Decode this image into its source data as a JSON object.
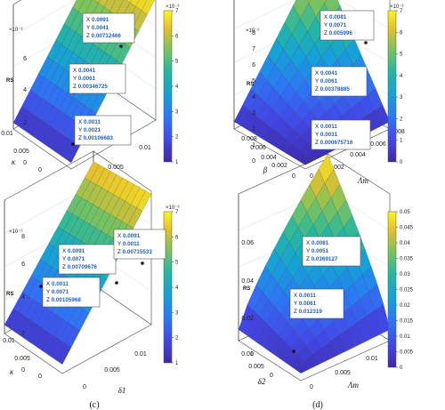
{
  "colors": {
    "low": "#3b1e8c",
    "mid": "#1fa187",
    "high": "#f5e61d"
  },
  "chart_data": [
    {
      "type": "surface",
      "caption": "(a)",
      "zlabel": "RS",
      "zexp": "×10⁻³",
      "xlabel": "β",
      "ylabel": "κ",
      "x_ticks": [
        "0",
        "0.005",
        "0.01"
      ],
      "y_ticks": [
        "0.01",
        "0.005",
        "0"
      ],
      "z_ticks": [
        "0",
        "2",
        "4",
        "6"
      ],
      "colorbar_ticks": [
        "1",
        "2",
        "3",
        "4",
        "5",
        "6",
        "7"
      ],
      "colorbar_exp": "×10⁻³",
      "datatips": [
        {
          "x": "0.0091",
          "y": "0.0041",
          "z": "0.00712466"
        },
        {
          "x": "0.0041",
          "y": "0.0061",
          "z": "0.00346725"
        },
        {
          "x": "0.0011",
          "y": "0.0021",
          "z": "0.00106683"
        }
      ]
    },
    {
      "type": "surface",
      "caption": "(b)",
      "zlabel": "RS",
      "zexp": "×10⁻³",
      "xlabel": "Λm",
      "ylabel": "β",
      "x_ticks": [
        "0",
        "0.002",
        "0.004",
        "0.006",
        "0.008"
      ],
      "y_ticks": [
        "0.008",
        "0.006",
        "0.004",
        "0.002",
        "0"
      ],
      "z_ticks": [
        "0",
        "1",
        "2",
        "3",
        "4",
        "5",
        "6",
        "7",
        "8"
      ],
      "colorbar_ticks": [
        "0",
        "1",
        "2",
        "3",
        "4",
        "5",
        "6",
        "7"
      ],
      "colorbar_exp": "×10⁻³",
      "datatips": [
        {
          "x": "0.0081",
          "y": "0.0071",
          "z": "0.005996"
        },
        {
          "x": "0.0041",
          "y": "0.0061",
          "z": "0.00378885"
        },
        {
          "x": "0.0011",
          "y": "0.0031",
          "z": "0.000675716"
        }
      ]
    },
    {
      "type": "surface",
      "caption": "(c)",
      "zlabel": "RS",
      "zexp": "×10⁻³",
      "xlabel": "δ1",
      "ylabel": "κ",
      "x_ticks": [
        "0",
        "0.005",
        "0.01"
      ],
      "y_ticks": [
        "0.01",
        "0.005",
        "0"
      ],
      "z_ticks": [
        "0",
        "2",
        "4",
        "6",
        "8"
      ],
      "colorbar_ticks": [
        "1",
        "2",
        "3",
        "4",
        "5",
        "6",
        "7"
      ],
      "colorbar_exp": "×10⁻³",
      "datatips": [
        {
          "x": "0.0091",
          "y": "0.0071",
          "z": "0.00709676"
        },
        {
          "x": "0.0091",
          "y": "0.0011",
          "z": "0.00715533"
        },
        {
          "x": "0.0011",
          "y": "0.0071",
          "z": "0.00105968"
        }
      ]
    },
    {
      "type": "surface",
      "caption": "(d)",
      "zlabel": "RS",
      "zexp": "",
      "xlabel": "Λm",
      "ylabel": "δ2",
      "x_ticks": [
        "0",
        "0.005",
        "0.01"
      ],
      "y_ticks": [
        "0.01",
        "0.005",
        "0"
      ],
      "z_ticks": [
        "0",
        "0.02",
        "0.04",
        "0.06"
      ],
      "colorbar_ticks": [
        "0",
        "0.005",
        "0.01",
        "0.015",
        "0.02",
        "0.025",
        "0.03",
        "0.035",
        "0.04",
        "0.045",
        "0.05"
      ],
      "colorbar_exp": "",
      "datatips": [
        {
          "x": "0.0081",
          "y": "0.0051",
          "z": "0.0369127"
        },
        {
          "x": "0.0011",
          "y": "0.0061",
          "z": "0.012319"
        }
      ]
    }
  ]
}
